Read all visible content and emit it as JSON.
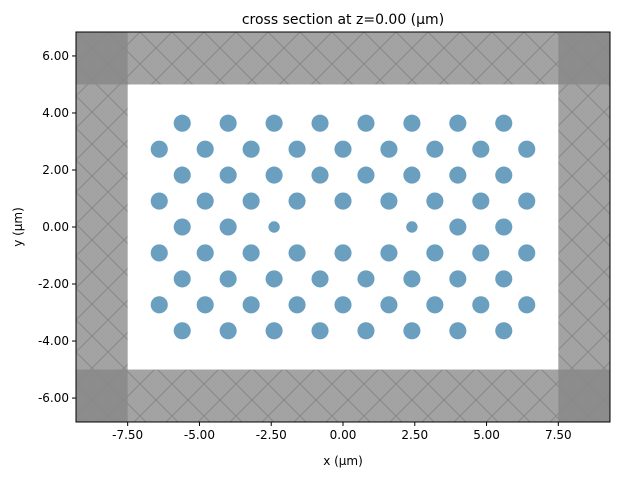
{
  "chart_data": {
    "type": "scatter",
    "title": "cross section at z=0.00 (μm)",
    "xlabel": "x (μm)",
    "ylabel": "y (μm)",
    "xlim": [
      -9.3,
      9.3
    ],
    "ylim": [
      -6.84,
      6.84
    ],
    "grid": false,
    "x_ticks": [
      "-7.50",
      "-5.00",
      "-2.50",
      "0.00",
      "2.50",
      "5.00",
      "7.50"
    ],
    "x_tick_values": [
      -7.5,
      -5,
      -2.5,
      0,
      2.5,
      5,
      7.5
    ],
    "y_ticks": [
      "6.00",
      "4.00",
      "2.00",
      "0.00",
      "-2.00",
      "-4.00",
      "-6.00"
    ],
    "y_tick_values": [
      6,
      4,
      2,
      0,
      -2,
      -4,
      -6
    ],
    "simulation_region": {
      "x": [
        -7.5,
        7.5
      ],
      "y": [
        -5,
        5
      ]
    },
    "pml_color": "#a3a3a3",
    "pml_corner_color": "#8c8c8c",
    "hole_color": "#6a9fbf",
    "holes": {
      "radius": 0.3,
      "small_radius": 0.2,
      "rows": [
        {
          "y": 3.64,
          "x": [
            -5.6,
            -4.0,
            -2.4,
            -0.8,
            0.8,
            2.4,
            4.0,
            5.6
          ]
        },
        {
          "y": 2.73,
          "x": [
            -6.4,
            -4.8,
            -3.2,
            -1.6,
            0,
            1.6,
            3.2,
            4.8,
            6.4
          ]
        },
        {
          "y": 1.82,
          "x": [
            -5.6,
            -4.0,
            -2.4,
            -0.8,
            0.8,
            2.4,
            4.0,
            5.6
          ]
        },
        {
          "y": 0.91,
          "x": [
            -6.4,
            -4.8,
            -3.2,
            -1.6,
            0,
            1.6,
            3.2,
            4.8,
            6.4
          ]
        },
        {
          "y": 0,
          "x": [
            -5.6,
            -4.0,
            4.0,
            5.6
          ],
          "small_x": [
            -2.4,
            2.4
          ]
        },
        {
          "y": -0.91,
          "x": [
            -6.4,
            -4.8,
            -3.2,
            -1.6,
            0,
            1.6,
            3.2,
            4.8,
            6.4
          ]
        },
        {
          "y": -1.82,
          "x": [
            -5.6,
            -4.0,
            -2.4,
            -0.8,
            0.8,
            2.4,
            4.0,
            5.6
          ]
        },
        {
          "y": -2.73,
          "x": [
            -6.4,
            -4.8,
            -3.2,
            -1.6,
            0,
            1.6,
            3.2,
            4.8,
            6.4
          ]
        },
        {
          "y": -3.64,
          "x": [
            -5.6,
            -4.0,
            -2.4,
            -0.8,
            0.8,
            2.4,
            4.0,
            5.6
          ]
        }
      ]
    }
  }
}
